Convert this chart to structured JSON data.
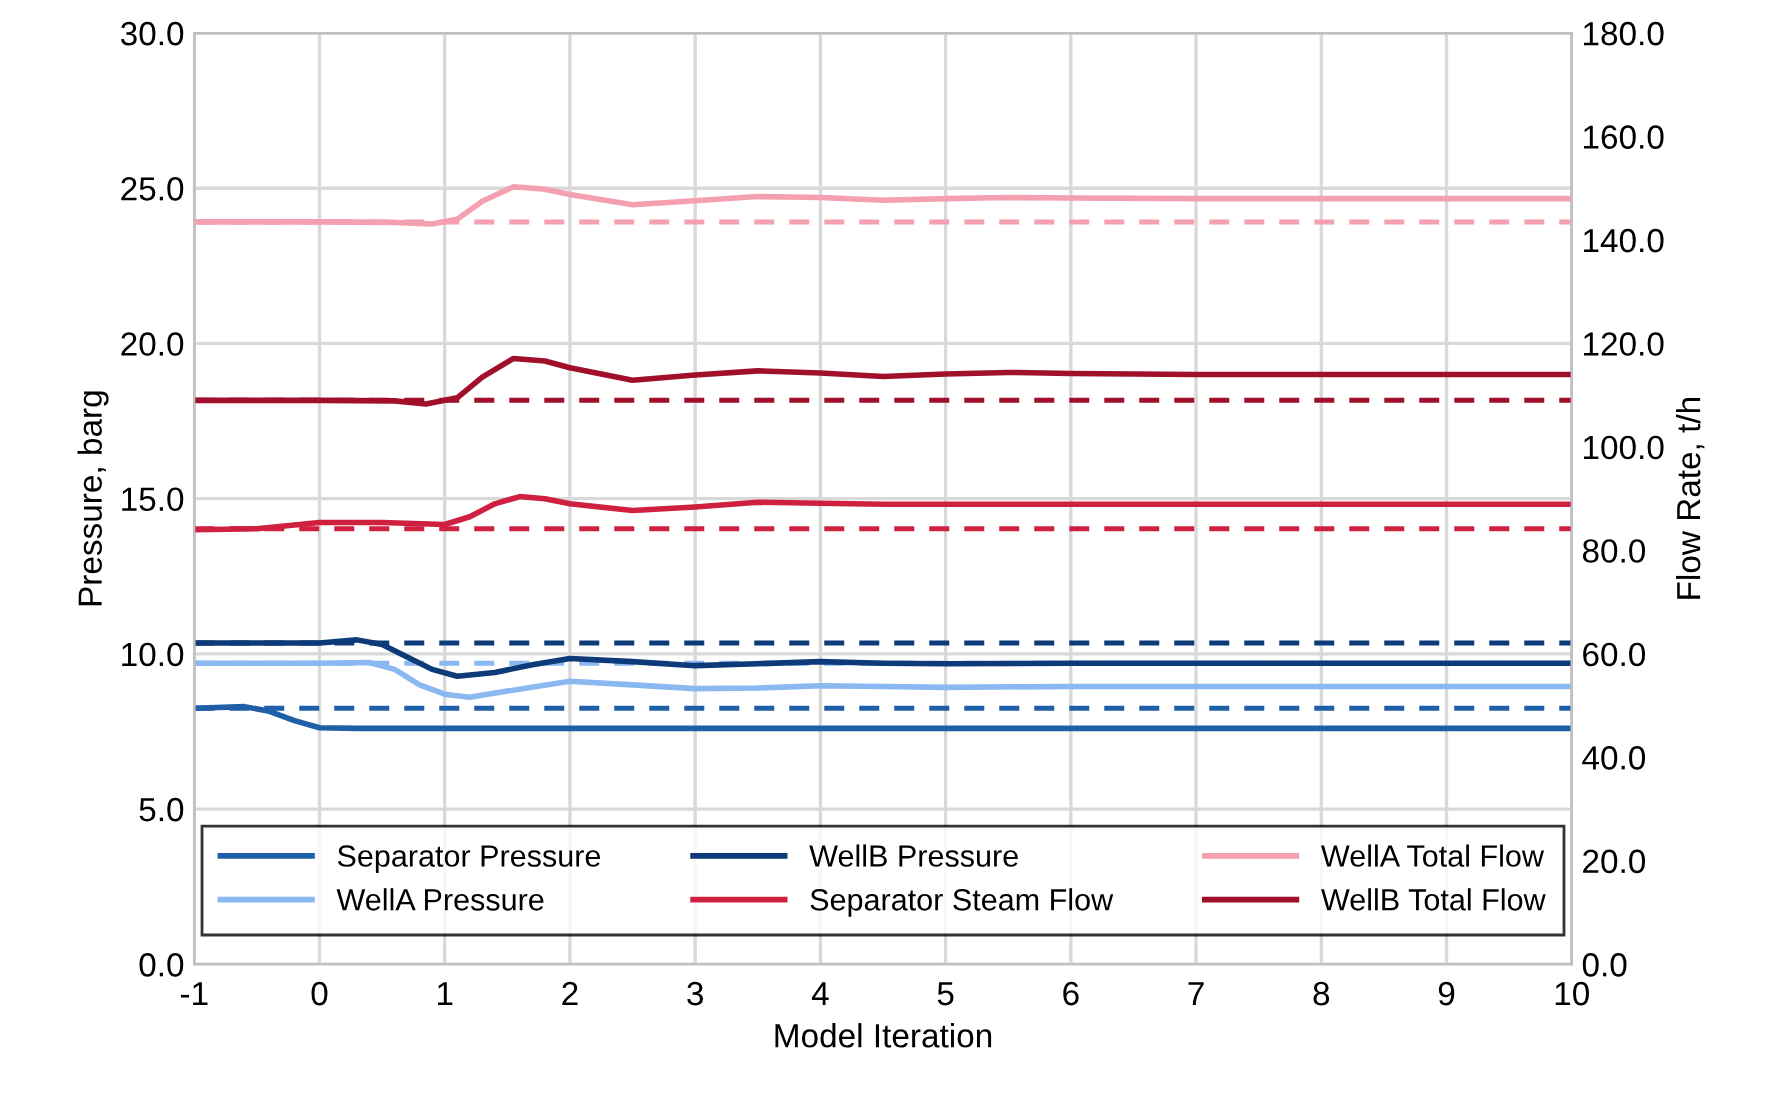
{
  "chart_data": {
    "type": "line",
    "xlabel": "Model Iteration",
    "ylabel": "Pressure, barg",
    "y2label": "Flow Rate, t/h",
    "xlim": [
      -1,
      10
    ],
    "xticks": [
      -1,
      0,
      1,
      2,
      3,
      4,
      5,
      6,
      7,
      8,
      9,
      10
    ],
    "ylim": [
      0,
      30
    ],
    "yticks": [
      {
        "value": 0,
        "label": "0.0"
      },
      {
        "value": 5,
        "label": "5.0"
      },
      {
        "value": 10,
        "label": "10.0"
      },
      {
        "value": 15,
        "label": "15.0"
      },
      {
        "value": 20,
        "label": "20.0"
      },
      {
        "value": 25,
        "label": "25.0"
      },
      {
        "value": 30,
        "label": "30.0"
      }
    ],
    "y2lim": [
      0,
      180
    ],
    "y2ticks": [
      {
        "value": 0,
        "label": "0.0"
      },
      {
        "value": 20,
        "label": "20.0"
      },
      {
        "value": 40,
        "label": "40.0"
      },
      {
        "value": 60,
        "label": "60.0"
      },
      {
        "value": 80,
        "label": "80.0"
      },
      {
        "value": 100,
        "label": "100.0"
      },
      {
        "value": 120,
        "label": "120.0"
      },
      {
        "value": 140,
        "label": "140.0"
      },
      {
        "value": 160,
        "label": "160.0"
      },
      {
        "value": 180,
        "label": "180.0"
      }
    ],
    "grid": true,
    "legend": "bottom",
    "marker": "none",
    "line_style": "solid",
    "series": [
      {
        "name": "Separator Pressure",
        "color": "#1f5fa8",
        "x": [
          -1,
          -0.6,
          -0.4,
          -0.2,
          0,
          0.3,
          1,
          2,
          3,
          4,
          5,
          6,
          7,
          8,
          9,
          10
        ],
        "values": [
          8.25,
          8.3,
          8.15,
          7.85,
          7.62,
          7.6,
          7.6,
          7.6,
          7.6,
          7.6,
          7.6,
          7.6,
          7.6,
          7.6,
          7.6,
          7.6
        ]
      },
      {
        "name": "WellA Pressure",
        "color": "#8ab8f0",
        "x": [
          -1,
          0,
          0.4,
          0.6,
          0.8,
          1,
          1.2,
          1.5,
          2,
          2.5,
          3,
          3.5,
          4,
          4.5,
          5,
          6,
          7,
          8,
          9,
          10
        ],
        "values": [
          9.7,
          9.7,
          9.72,
          9.5,
          9.0,
          8.7,
          8.6,
          8.8,
          9.12,
          9.0,
          8.88,
          8.9,
          8.97,
          8.95,
          8.92,
          8.95,
          8.95,
          8.95,
          8.95,
          8.95
        ]
      },
      {
        "name": "WellB Pressure",
        "color": "#0d3a78",
        "x": [
          -1,
          0,
          0.3,
          0.5,
          0.7,
          0.9,
          1.1,
          1.4,
          1.7,
          2,
          2.5,
          3,
          3.5,
          4,
          4.5,
          5,
          6,
          7,
          8,
          9,
          10
        ],
        "values": [
          10.35,
          10.35,
          10.45,
          10.3,
          9.9,
          9.5,
          9.28,
          9.4,
          9.65,
          9.85,
          9.75,
          9.62,
          9.68,
          9.75,
          9.7,
          9.68,
          9.7,
          9.7,
          9.7,
          9.7,
          9.7
        ]
      },
      {
        "name": "Separator Steam Flow",
        "color": "#d0203f",
        "axis": "y2",
        "x": [
          -1,
          -0.5,
          0,
          0.5,
          1,
          1.2,
          1.4,
          1.6,
          1.8,
          2,
          2.5,
          3,
          3.5,
          4,
          4.5,
          5,
          6,
          7,
          8,
          9,
          10
        ],
        "values": [
          84.0,
          84.2,
          85.4,
          85.4,
          85.0,
          86.5,
          89.0,
          90.4,
          90.0,
          89.0,
          87.7,
          88.4,
          89.3,
          89.1,
          88.9,
          88.9,
          88.9,
          88.9,
          88.9,
          88.9,
          88.9
        ]
      },
      {
        "name": "WellA Total Flow",
        "color": "#f4a0b0",
        "axis": "y2",
        "x": [
          -1,
          0,
          0.6,
          0.9,
          1.1,
          1.3,
          1.55,
          1.8,
          2,
          2.5,
          3,
          3.5,
          4,
          4.5,
          5,
          5.5,
          6,
          7,
          8,
          9,
          10
        ],
        "values": [
          143.5,
          143.5,
          143.4,
          143.1,
          144.0,
          147.5,
          150.3,
          149.8,
          148.8,
          146.8,
          147.6,
          148.4,
          148.2,
          147.7,
          148.0,
          148.2,
          148.1,
          148.0,
          148.0,
          148.0,
          148.0
        ]
      },
      {
        "name": "WellB Total Flow",
        "color": "#a0102a",
        "axis": "y2",
        "x": [
          -1,
          0,
          0.6,
          0.85,
          1.1,
          1.3,
          1.55,
          1.8,
          2,
          2.5,
          3,
          3.5,
          4,
          4.5,
          5,
          5.5,
          6,
          7,
          8,
          9,
          10
        ],
        "values": [
          109.0,
          109.0,
          108.9,
          108.3,
          109.5,
          113.5,
          117.1,
          116.6,
          115.3,
          112.9,
          113.9,
          114.7,
          114.3,
          113.6,
          114.1,
          114.4,
          114.2,
          114.0,
          114.0,
          114.0,
          114.0
        ]
      }
    ],
    "ref_lines": [
      {
        "axis": "y",
        "value": 8.25,
        "color": "#1f5fa8",
        "line_style": "dashed"
      },
      {
        "axis": "y",
        "value": 9.7,
        "color": "#8ab8f0",
        "line_style": "dashed"
      },
      {
        "axis": "y",
        "value": 10.35,
        "color": "#0d3a78",
        "line_style": "dashed"
      },
      {
        "axis": "y2",
        "value": 84.2,
        "color": "#d0203f",
        "line_style": "dashed"
      },
      {
        "axis": "y2",
        "value": 143.5,
        "color": "#f4a0b0",
        "line_style": "dashed"
      },
      {
        "axis": "y2",
        "value": 109.0,
        "color": "#a0102a",
        "line_style": "dashed"
      }
    ]
  }
}
